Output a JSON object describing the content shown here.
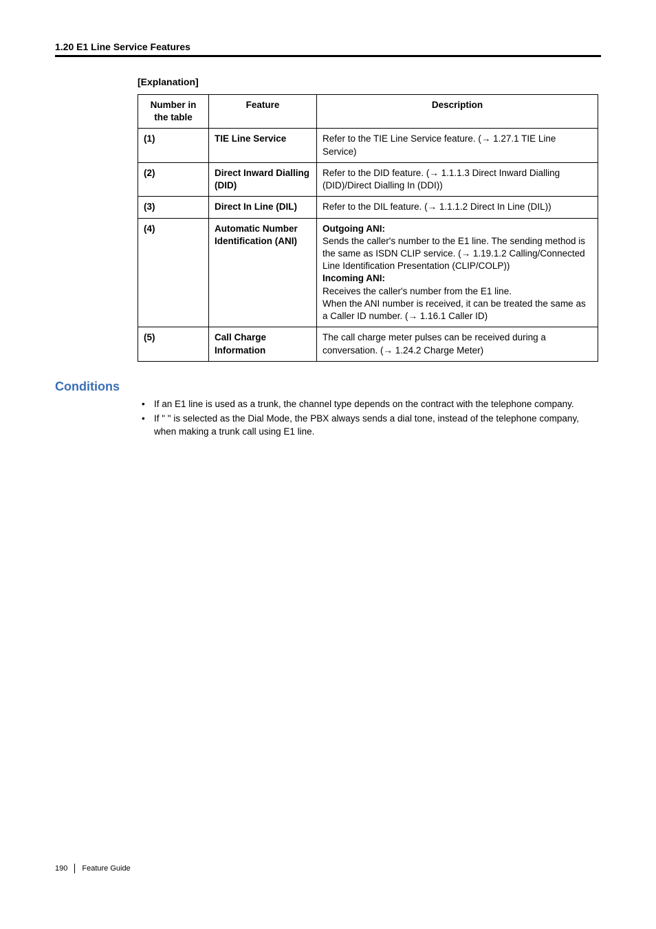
{
  "header": {
    "section": "1.20 E1 Line Service Features"
  },
  "explanationLabel": "[Explanation]",
  "table": {
    "headers": {
      "num": "Number in the table",
      "feature": "Feature",
      "desc": "Description"
    },
    "rows": [
      {
        "num": "(1)",
        "feature": "TIE Line Service",
        "desc_pre": "Refer to the TIE Line Service feature. (",
        "desc_link": " 1.27.1 TIE Line Service",
        "desc_post": ")"
      },
      {
        "num": "(2)",
        "feature": "Direct Inward Dialling (DID)",
        "desc_pre": "Refer to the DID feature. (",
        "desc_link": " 1.1.1.3 Direct Inward Dialling (DID)/Direct Dialling In (DDI)",
        "desc_post": ")"
      },
      {
        "num": "(3)",
        "feature": "Direct In Line (DIL)",
        "desc_pre": "Refer to the DIL feature. (",
        "desc_link": " 1.1.1.2 Direct In Line (DIL)",
        "desc_post": ")"
      },
      {
        "num": "(4)",
        "feature": "Automatic Number Identification (ANI)",
        "out_label": "Outgoing ANI:",
        "out_text1": "Sends the caller's number to the E1 line. The sending method is the same as ISDN CLIP service. (",
        "out_link": " 1.19.1.2 Calling/Connected Line Identification Presentation (CLIP/COLP)",
        "out_text2": ")",
        "in_label": "Incoming ANI:",
        "in_text1": "Receives the caller's number from the E1 line.",
        "in_text2": "When the ANI number is received, it can be treated the same as a Caller ID number. (",
        "in_link": " 1.16.1 Caller ID",
        "in_text3": ")"
      },
      {
        "num": "(5)",
        "feature": "Call Charge Information",
        "desc_pre": "The call charge meter pulses can be received during a conversation. (",
        "desc_link": " 1.24.2 Charge Meter",
        "desc_post": ")"
      }
    ]
  },
  "conditions": {
    "heading": "Conditions",
    "items": [
      "If an E1 line is used as a trunk, the channel type depends on the contract with the telephone company.",
      "If \"             \" is selected as the Dial Mode, the PBX always sends a dial tone, instead of the telephone company, when making a trunk call using E1 line."
    ]
  },
  "footer": {
    "page": "190",
    "label": "Feature Guide"
  },
  "glyphs": {
    "arrow": "→"
  },
  "colors": {
    "heading_blue": "#3b6fb5",
    "text": "#000000",
    "rule": "#000000"
  }
}
